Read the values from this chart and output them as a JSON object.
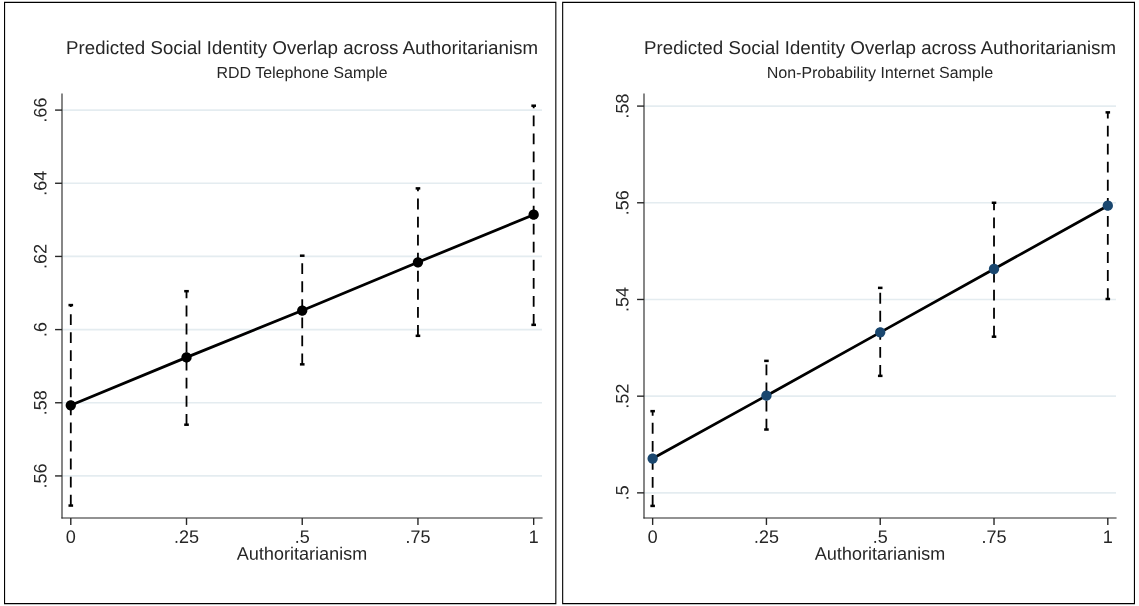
{
  "chart_data": [
    {
      "type": "line",
      "title": "Predicted Social Identity Overlap across Authoritarianism",
      "subtitle": "RDD Telephone Sample",
      "xlabel": "Authoritarianism",
      "x": [
        0,
        0.25,
        0.5,
        0.75,
        1
      ],
      "series": [
        {
          "color": "#000000",
          "values": [
            0.5793,
            0.5924,
            0.6052,
            0.6184,
            0.6314
          ],
          "errors": [
            [
              0.5519,
              0.6067
            ],
            [
              0.574,
              0.6105
            ],
            [
              0.5905,
              0.6202
            ],
            [
              0.5983,
              0.6386
            ],
            [
              0.6013,
              0.6612
            ]
          ]
        }
      ],
      "xlim": [
        -0.019,
        1.018
      ],
      "xticks": [
        0,
        {
          "value": 0.25,
          "label": ".25"
        },
        {
          "value": 0.5,
          "label": ".5"
        },
        {
          "value": 0.75,
          "label": ".75"
        },
        1
      ],
      "ylim": [
        0.5485,
        0.6644
      ],
      "yticks": [
        {
          "value": 0.56,
          "label": ".56"
        },
        {
          "value": 0.58,
          "label": ".58"
        },
        {
          "value": 0.6,
          "label": ".6"
        },
        {
          "value": 0.62,
          "label": ".62"
        },
        {
          "value": 0.64,
          "label": ".64"
        },
        {
          "value": 0.66,
          "label": ".66"
        }
      ],
      "grid": "y",
      "marker": "circle",
      "line_style": "solid",
      "legend": false
    },
    {
      "type": "line",
      "title": "Predicted Social Identity Overlap across Authoritarianism",
      "subtitle": "Non-Probability Internet Sample",
      "xlabel": "Authoritarianism",
      "x": [
        0,
        0.25,
        0.5,
        0.75,
        1
      ],
      "series": [
        {
          "color": "#1a476f",
          "values": [
            0.5071,
            0.5201,
            0.5332,
            0.5463,
            0.5594
          ],
          "errors": [
            [
              0.4973,
              0.5169
            ],
            [
              0.5131,
              0.5273
            ],
            [
              0.5242,
              0.5424
            ],
            [
              0.5323,
              0.56
            ],
            [
              0.5401,
              0.5787
            ]
          ]
        }
      ],
      "xlim": [
        -0.019,
        1.018
      ],
      "xticks": [
        0,
        {
          "value": 0.25,
          "label": ".25"
        },
        {
          "value": 0.5,
          "label": ".5"
        },
        {
          "value": 0.75,
          "label": ".75"
        },
        1
      ],
      "ylim": [
        0.4948,
        0.5825
      ],
      "yticks": [
        {
          "value": 0.5,
          "label": ".5"
        },
        {
          "value": 0.52,
          "label": ".52"
        },
        {
          "value": 0.54,
          "label": ".54"
        },
        {
          "value": 0.56,
          "label": ".56"
        },
        {
          "value": 0.58,
          "label": ".58"
        }
      ],
      "grid": "y",
      "marker": "circle",
      "line_style": "solid",
      "legend": false
    }
  ]
}
